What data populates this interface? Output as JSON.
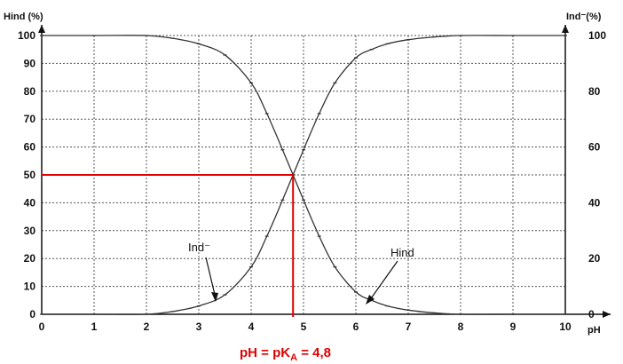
{
  "chart_data": {
    "type": "line",
    "title": "",
    "xlabel": "pH",
    "ylabel_left": "Hind (%)",
    "ylabel_right": "Ind⁻(%)",
    "xlim": [
      0,
      10
    ],
    "ylim": [
      0,
      100
    ],
    "grid": true,
    "x_ticks": [
      0,
      1,
      2,
      3,
      4,
      5,
      6,
      7,
      8,
      9,
      10
    ],
    "y_ticks_left": [
      0,
      10,
      20,
      30,
      40,
      50,
      60,
      70,
      80,
      90,
      100
    ],
    "y_ticks_right": [
      0,
      20,
      40,
      60,
      80,
      100
    ],
    "series": [
      {
        "name": "Hind",
        "x": [
          0,
          1,
          2,
          2.5,
          3,
          3.5,
          4,
          4.3,
          4.6,
          4.8,
          5.0,
          5.3,
          5.6,
          6.0,
          6.3,
          6.6,
          7.0,
          7.5,
          8,
          9,
          10
        ],
        "y": [
          100,
          100,
          100,
          99,
          97,
          93,
          83,
          72,
          59,
          50,
          41,
          28,
          17,
          8,
          5,
          3,
          1.5,
          0.5,
          0,
          0,
          0
        ]
      },
      {
        "name": "Ind⁻",
        "x": [
          0,
          1,
          2,
          2.5,
          3,
          3.5,
          4,
          4.3,
          4.6,
          4.8,
          5.0,
          5.3,
          5.6,
          6.0,
          6.3,
          6.6,
          7.0,
          7.5,
          8,
          9,
          10
        ],
        "y": [
          0,
          0,
          0,
          1,
          3,
          7,
          17,
          28,
          41,
          50,
          59,
          72,
          83,
          92,
          95,
          97,
          98.5,
          99.5,
          100,
          100,
          100
        ]
      }
    ],
    "annotations": {
      "ind_label": "Ind⁻",
      "hind_label": "Hind",
      "pka_label": "pH = pK",
      "pka_sub": "A",
      "pka_value": " = 4,8"
    },
    "reference": {
      "x": 4.8,
      "y": 50
    }
  },
  "colors": {
    "axes": "#111111",
    "grid": "#555555",
    "curve": "#333333",
    "reference": "#e00000"
  }
}
